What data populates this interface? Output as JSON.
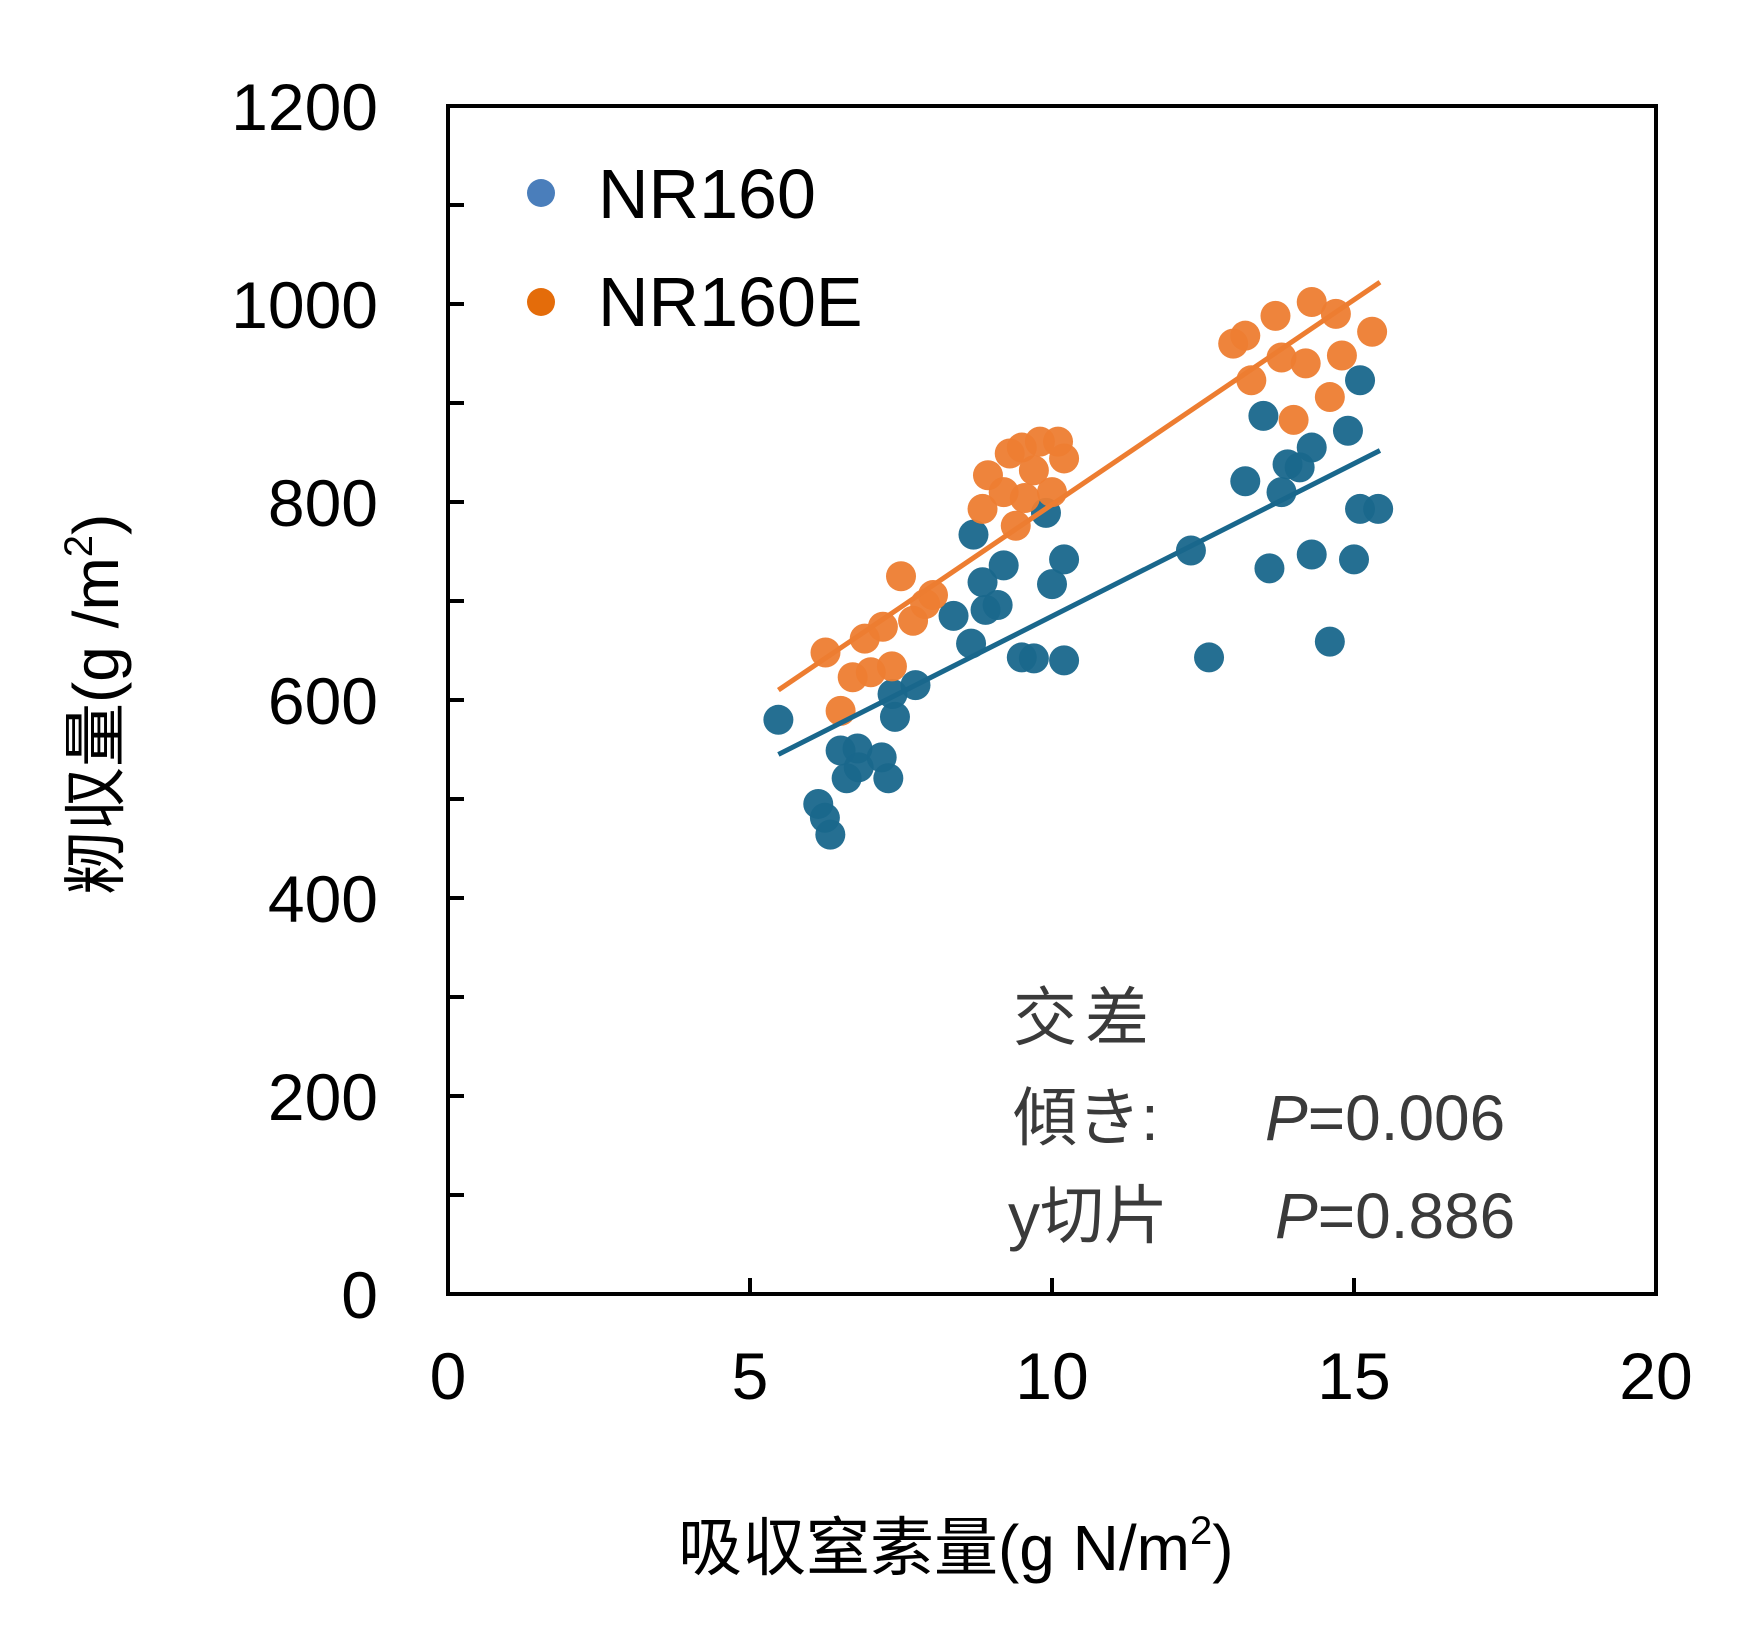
{
  "chart_data": {
    "type": "scatter",
    "title": "",
    "xlabel": "吸収窒素量(g N/m²)",
    "xlabel_main": "吸収窒素量(g N/m",
    "xlabel_sup": "2",
    "xlabel_end": ")",
    "ylabel_main": "籾収量(g /m",
    "ylabel_sup": "2",
    "ylabel_end": ")",
    "xlim": [
      0,
      20
    ],
    "ylim": [
      0,
      1200
    ],
    "xticks": [
      0,
      5,
      10,
      15,
      20
    ],
    "yticks": [
      0,
      200,
      400,
      600,
      800,
      1000,
      1200
    ],
    "grid": false,
    "legend_position": "top-left",
    "series": [
      {
        "name": "NR160",
        "color": "#19678C",
        "legend_color": "#4A7EBB",
        "points": [
          [
            5.47,
            580
          ],
          [
            6.13,
            495
          ],
          [
            6.24,
            481
          ],
          [
            6.33,
            464
          ],
          [
            6.5,
            549
          ],
          [
            6.6,
            521
          ],
          [
            6.78,
            551
          ],
          [
            6.8,
            532
          ],
          [
            7.18,
            542
          ],
          [
            7.29,
            521
          ],
          [
            7.36,
            606
          ],
          [
            7.4,
            583
          ],
          [
            7.74,
            615
          ],
          [
            8.37,
            685
          ],
          [
            8.66,
            657
          ],
          [
            8.7,
            767
          ],
          [
            8.85,
            719
          ],
          [
            8.9,
            691
          ],
          [
            9.1,
            696
          ],
          [
            9.2,
            736
          ],
          [
            9.5,
            643
          ],
          [
            9.7,
            642
          ],
          [
            9.9,
            789
          ],
          [
            10.0,
            717
          ],
          [
            10.2,
            640
          ],
          [
            10.2,
            742
          ],
          [
            12.3,
            751
          ],
          [
            12.6,
            643
          ],
          [
            13.2,
            821
          ],
          [
            13.5,
            887
          ],
          [
            13.6,
            733
          ],
          [
            13.8,
            810
          ],
          [
            13.9,
            838
          ],
          [
            14.1,
            835
          ],
          [
            14.3,
            855
          ],
          [
            14.3,
            747
          ],
          [
            14.6,
            659
          ],
          [
            14.9,
            872
          ],
          [
            15.0,
            742
          ],
          [
            15.1,
            923
          ],
          [
            15.1,
            793
          ],
          [
            15.4,
            793
          ]
        ],
        "fit": {
          "x": [
            5.47,
            15.43
          ],
          "y": [
            545,
            852
          ]
        }
      },
      {
        "name": "NR160E",
        "color": "#ED7D31",
        "legend_color": "#E46C0A",
        "points": [
          [
            6.25,
            648
          ],
          [
            6.5,
            589
          ],
          [
            6.7,
            623
          ],
          [
            6.9,
            662
          ],
          [
            7.0,
            628
          ],
          [
            7.2,
            674
          ],
          [
            7.35,
            634
          ],
          [
            7.5,
            725
          ],
          [
            7.7,
            680
          ],
          [
            7.9,
            697
          ],
          [
            8.03,
            706
          ],
          [
            8.85,
            793
          ],
          [
            8.94,
            827
          ],
          [
            9.2,
            810
          ],
          [
            9.3,
            849
          ],
          [
            9.4,
            776
          ],
          [
            9.5,
            855
          ],
          [
            9.55,
            804
          ],
          [
            9.7,
            832
          ],
          [
            9.8,
            861
          ],
          [
            10.0,
            810
          ],
          [
            10.1,
            861
          ],
          [
            10.2,
            844
          ],
          [
            13.0,
            960
          ],
          [
            13.2,
            968
          ],
          [
            13.3,
            923
          ],
          [
            13.7,
            988
          ],
          [
            13.8,
            946
          ],
          [
            14.0,
            883
          ],
          [
            14.2,
            940
          ],
          [
            14.3,
            1002
          ],
          [
            14.6,
            906
          ],
          [
            14.7,
            990
          ],
          [
            14.8,
            948
          ],
          [
            15.3,
            972
          ]
        ],
        "fit": {
          "x": [
            5.47,
            15.43
          ],
          "y": [
            610,
            1022
          ]
        }
      }
    ],
    "annotations": {
      "heading": "交差",
      "slope_label": "傾き:",
      "slope_p": "P=0.006",
      "intercept_label": "y切片",
      "intercept_p": "P=0.886"
    }
  }
}
